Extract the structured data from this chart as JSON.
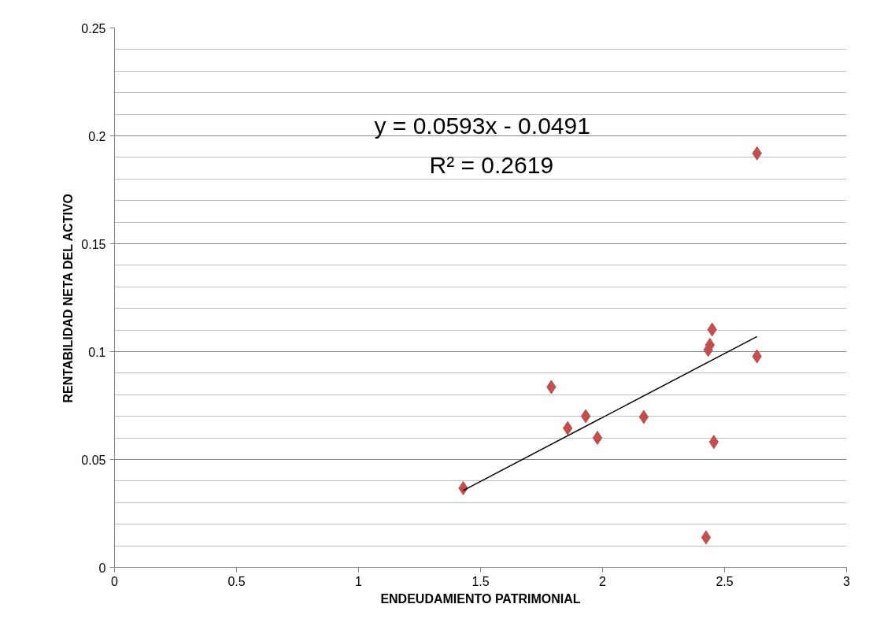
{
  "chart_data": {
    "type": "scatter",
    "xlabel": "ENDEUDAMIENTO PATRIMONIAL",
    "ylabel": "RENTABILIDAD NETA DEL ACTIVO",
    "xlim": [
      0,
      3
    ],
    "xticks": [
      0,
      0.5,
      1,
      1.5,
      2,
      2.5,
      3
    ],
    "ylim": [
      0,
      0.25
    ],
    "yticks": [
      0,
      {
        "value": 0.01,
        "label": null
      },
      {
        "value": 0.02,
        "label": null
      },
      {
        "value": 0.03,
        "label": null
      },
      {
        "value": 0.04,
        "label": null
      },
      0.05,
      {
        "value": 0.06,
        "label": null
      },
      {
        "value": 0.07,
        "label": null
      },
      {
        "value": 0.08,
        "label": null
      },
      {
        "value": 0.09,
        "label": null
      },
      0.1,
      {
        "value": 0.11,
        "label": null
      },
      {
        "value": 0.12,
        "label": null
      },
      {
        "value": 0.13,
        "label": null
      },
      {
        "value": 0.14,
        "label": null
      },
      0.15,
      {
        "value": 0.16,
        "label": null
      },
      {
        "value": 0.17,
        "label": null
      },
      {
        "value": 0.18,
        "label": null
      },
      {
        "value": 0.19,
        "label": null
      },
      0.2,
      {
        "value": 0.21,
        "label": null
      },
      {
        "value": 0.22,
        "label": null
      },
      {
        "value": 0.23,
        "label": null
      },
      {
        "value": 0.24,
        "label": null
      },
      0.25
    ],
    "grid": "y",
    "series": [
      {
        "marker": "diamond",
        "color": "#c0504d",
        "x": [
          1.429,
          1.79,
          1.857,
          1.931,
          1.979,
          2.169,
          2.424,
          2.433,
          2.44,
          2.449,
          2.456,
          2.633,
          2.633
        ],
        "values": [
          0.0367,
          0.0836,
          0.0645,
          0.0701,
          0.06,
          0.0697,
          0.0139,
          0.1008,
          0.1031,
          0.1102,
          0.0581,
          0.0978,
          0.1919
        ]
      },
      {
        "type": "line",
        "color": "#000000",
        "x": [
          1.429,
          2.633
        ],
        "values": [
          0.0356,
          0.107
        ]
      }
    ],
    "annotations": [
      "y = 0.0593x - 0.0491",
      "R² = 0.2619"
    ]
  }
}
